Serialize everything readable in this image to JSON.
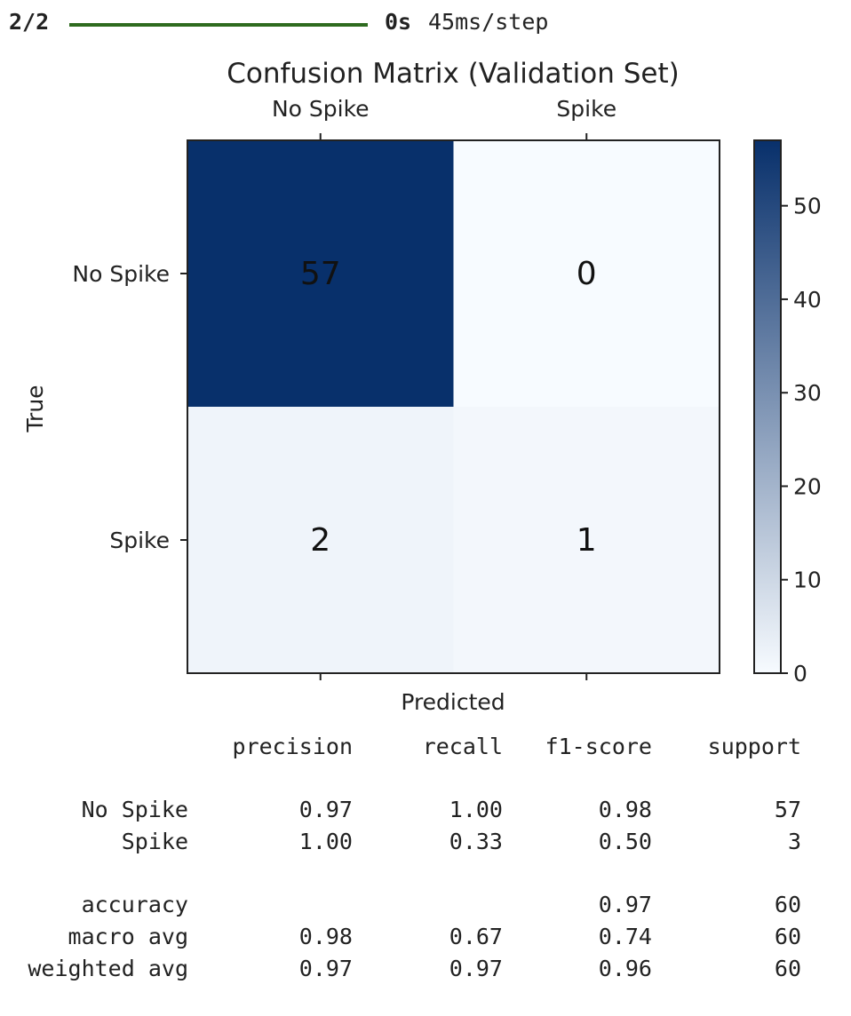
{
  "progress": {
    "step": "2/2",
    "fraction": 1.0,
    "time": "0s",
    "rate": "45ms/step"
  },
  "chart_data": {
    "type": "heatmap",
    "title": "Confusion Matrix (Validation Set)",
    "xlabel": "Predicted",
    "ylabel": "True",
    "x_categories": [
      "No Spike",
      "Spike"
    ],
    "y_categories": [
      "No Spike",
      "Spike"
    ],
    "values": [
      [
        57,
        0
      ],
      [
        2,
        1
      ]
    ],
    "colormap": "Blues",
    "color_low": "#f7fbff",
    "color_high": "#08306b",
    "colorbar": {
      "min": 0,
      "max": 57,
      "ticks": [
        0,
        10,
        20,
        30,
        40,
        50
      ]
    },
    "grid": false
  },
  "report": {
    "headers": [
      "precision",
      "recall",
      "f1-score",
      "support"
    ],
    "rows": [
      [
        "No Spike",
        "0.97",
        "1.00",
        "0.98",
        "57"
      ],
      [
        "Spike",
        "1.00",
        "0.33",
        "0.50",
        "3"
      ],
      [
        "accuracy",
        "",
        "",
        "0.97",
        "60"
      ],
      [
        "macro avg",
        "0.98",
        "0.67",
        "0.74",
        "60"
      ],
      [
        "weighted avg",
        "0.97",
        "0.97",
        "0.96",
        "60"
      ]
    ]
  }
}
